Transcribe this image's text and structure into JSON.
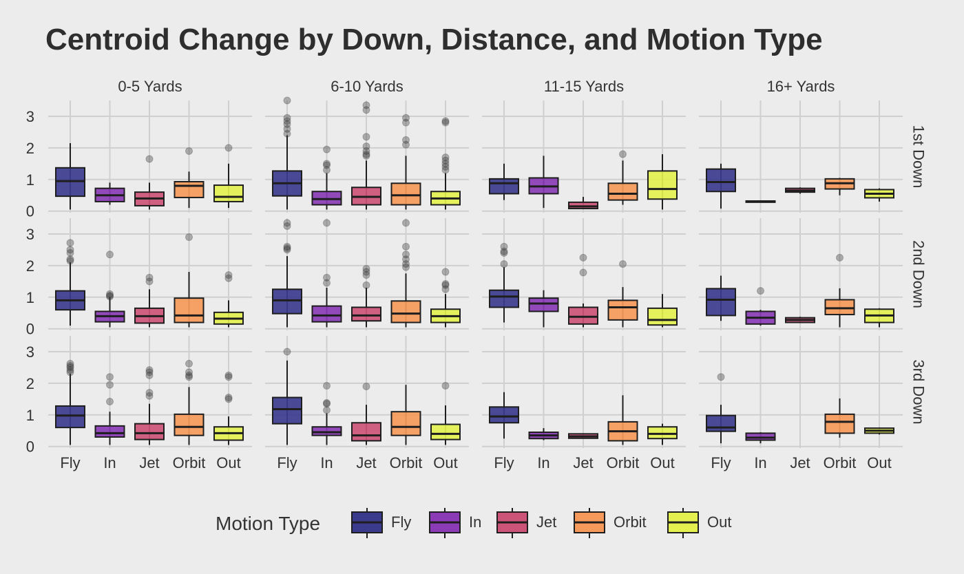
{
  "chart_data": {
    "type": "boxplot",
    "title": "Centroid Change by Down, Distance, and Motion Type",
    "categories": [
      "Fly",
      "In",
      "Jet",
      "Orbit",
      "Out"
    ],
    "facet_columns": [
      "0-5 Yards",
      "6-10 Yards",
      "11-15 Yards",
      "16+ Yards"
    ],
    "facet_rows": [
      "1st Down",
      "2nd Down",
      "3rd Down"
    ],
    "y_ticks": [
      0,
      1,
      2,
      3
    ],
    "ylim": [
      -0.05,
      3.5
    ],
    "legend": {
      "title": "Motion Type",
      "position": "bottom"
    },
    "colors": {
      "Fly": "#3b3b8e",
      "In": "#8a3bb5",
      "Jet": "#cc5478",
      "Orbit": "#f59a5a",
      "Out": "#e4f050"
    },
    "panels": [
      {
        "row": "1st Down",
        "col": "0-5 Yards",
        "boxes": [
          {
            "category": "Fly",
            "whisker_low": 0.05,
            "q1": 0.47,
            "median": 0.95,
            "q3": 1.37,
            "whisker_high": 2.15,
            "outliers": []
          },
          {
            "category": "In",
            "whisker_low": 0.2,
            "q1": 0.3,
            "median": 0.5,
            "q3": 0.72,
            "whisker_high": 0.9,
            "outliers": []
          },
          {
            "category": "Jet",
            "whisker_low": 0.05,
            "q1": 0.17,
            "median": 0.4,
            "q3": 0.6,
            "whisker_high": 0.9,
            "outliers": [
              1.65
            ]
          },
          {
            "category": "Orbit",
            "whisker_low": 0.1,
            "q1": 0.43,
            "median": 0.8,
            "q3": 0.93,
            "whisker_high": 1.25,
            "outliers": [
              1.9
            ]
          },
          {
            "category": "Out",
            "whisker_low": 0.1,
            "q1": 0.3,
            "median": 0.45,
            "q3": 0.82,
            "whisker_high": 1.5,
            "outliers": [
              2.0
            ]
          }
        ]
      },
      {
        "row": "1st Down",
        "col": "6-10 Yards",
        "boxes": [
          {
            "category": "Fly",
            "whisker_low": 0.05,
            "q1": 0.48,
            "median": 0.88,
            "q3": 1.27,
            "whisker_high": 2.4,
            "outliers": [
              2.45,
              2.6,
              2.75,
              2.85,
              2.95,
              3.5
            ]
          },
          {
            "category": "In",
            "whisker_low": 0.05,
            "q1": 0.2,
            "median": 0.38,
            "q3": 0.62,
            "whisker_high": 1.2,
            "outliers": [
              1.3,
              1.45,
              1.5,
              1.95
            ]
          },
          {
            "category": "Jet",
            "whisker_low": 0.05,
            "q1": 0.2,
            "median": 0.45,
            "q3": 0.75,
            "whisker_high": 1.6,
            "outliers": [
              1.75,
              1.8,
              1.9,
              2.05,
              2.35,
              3.2,
              3.35
            ]
          },
          {
            "category": "Orbit",
            "whisker_low": 0.05,
            "q1": 0.2,
            "median": 0.5,
            "q3": 0.88,
            "whisker_high": 1.75,
            "outliers": [
              2.1,
              2.25,
              2.8,
              2.95
            ]
          },
          {
            "category": "Out",
            "whisker_low": 0.05,
            "q1": 0.2,
            "median": 0.4,
            "q3": 0.62,
            "whisker_high": 1.2,
            "outliers": [
              1.3,
              1.4,
              1.5,
              1.6,
              1.7,
              2.8,
              2.85
            ]
          }
        ]
      },
      {
        "row": "1st Down",
        "col": "11-15 Yards",
        "boxes": [
          {
            "category": "Fly",
            "whisker_low": 0.35,
            "q1": 0.55,
            "median": 0.88,
            "q3": 1.02,
            "whisker_high": 1.5,
            "outliers": []
          },
          {
            "category": "In",
            "whisker_low": 0.1,
            "q1": 0.55,
            "median": 0.78,
            "q3": 1.05,
            "whisker_high": 1.75,
            "outliers": []
          },
          {
            "category": "Jet",
            "whisker_low": 0.08,
            "q1": 0.08,
            "median": 0.15,
            "q3": 0.28,
            "whisker_high": 0.45,
            "outliers": []
          },
          {
            "category": "Orbit",
            "whisker_low": 0.2,
            "q1": 0.35,
            "median": 0.55,
            "q3": 0.88,
            "whisker_high": 1.6,
            "outliers": [
              1.8
            ]
          },
          {
            "category": "Out",
            "whisker_low": 0.05,
            "q1": 0.38,
            "median": 0.7,
            "q3": 1.27,
            "whisker_high": 1.8,
            "outliers": []
          }
        ]
      },
      {
        "row": "1st Down",
        "col": "16+ Yards",
        "boxes": [
          {
            "category": "Fly",
            "whisker_low": 0.08,
            "q1": 0.62,
            "median": 0.92,
            "q3": 1.33,
            "whisker_high": 1.5,
            "outliers": []
          },
          {
            "category": "In",
            "whisker_low": 0.28,
            "q1": 0.28,
            "median": 0.3,
            "q3": 0.32,
            "whisker_high": 0.32,
            "outliers": []
          },
          {
            "category": "Jet",
            "whisker_low": 0.55,
            "q1": 0.6,
            "median": 0.65,
            "q3": 0.72,
            "whisker_high": 0.75,
            "outliers": []
          },
          {
            "category": "Orbit",
            "whisker_low": 0.5,
            "q1": 0.7,
            "median": 0.88,
            "q3": 1.02,
            "whisker_high": 1.05,
            "outliers": []
          },
          {
            "category": "Out",
            "whisker_low": 0.3,
            "q1": 0.42,
            "median": 0.55,
            "q3": 0.68,
            "whisker_high": 0.72,
            "outliers": []
          }
        ]
      },
      {
        "row": "2nd Down",
        "col": "0-5 Yards",
        "boxes": [
          {
            "category": "Fly",
            "whisker_low": 0.1,
            "q1": 0.6,
            "median": 0.9,
            "q3": 1.2,
            "whisker_high": 2.1,
            "outliers": [
              2.15,
              2.2,
              2.4,
              2.5,
              2.72
            ]
          },
          {
            "category": "In",
            "whisker_low": 0.05,
            "q1": 0.22,
            "median": 0.4,
            "q3": 0.55,
            "whisker_high": 1.0,
            "outliers": [
              1.02,
              1.05,
              1.1,
              2.35
            ]
          },
          {
            "category": "Jet",
            "whisker_low": 0.05,
            "q1": 0.18,
            "median": 0.4,
            "q3": 0.65,
            "whisker_high": 1.25,
            "outliers": [
              1.5,
              1.62
            ]
          },
          {
            "category": "Orbit",
            "whisker_low": 0.05,
            "q1": 0.2,
            "median": 0.42,
            "q3": 0.97,
            "whisker_high": 1.8,
            "outliers": [
              2.9
            ]
          },
          {
            "category": "Out",
            "whisker_low": 0.05,
            "q1": 0.15,
            "median": 0.32,
            "q3": 0.52,
            "whisker_high": 0.9,
            "outliers": [
              1.6,
              1.7
            ]
          }
        ]
      },
      {
        "row": "2nd Down",
        "col": "6-10 Yards",
        "boxes": [
          {
            "category": "Fly",
            "whisker_low": 0.05,
            "q1": 0.48,
            "median": 0.9,
            "q3": 1.25,
            "whisker_high": 2.3,
            "outliers": [
              2.5,
              2.55,
              2.6,
              3.25,
              3.35
            ]
          },
          {
            "category": "In",
            "whisker_low": 0.05,
            "q1": 0.22,
            "median": 0.42,
            "q3": 0.72,
            "whisker_high": 1.3,
            "outliers": [
              1.45,
              1.62,
              3.35
            ]
          },
          {
            "category": "Jet",
            "whisker_low": 0.05,
            "q1": 0.25,
            "median": 0.42,
            "q3": 0.68,
            "whisker_high": 1.3,
            "outliers": [
              1.38,
              1.7,
              1.8,
              1.9
            ]
          },
          {
            "category": "Orbit",
            "whisker_low": 0.05,
            "q1": 0.2,
            "median": 0.48,
            "q3": 0.88,
            "whisker_high": 1.75,
            "outliers": [
              1.95,
              2.05,
              2.2,
              2.35,
              2.6,
              3.35
            ]
          },
          {
            "category": "Out",
            "whisker_low": 0.05,
            "q1": 0.2,
            "median": 0.4,
            "q3": 0.62,
            "whisker_high": 1.1,
            "outliers": [
              1.25,
              1.38,
              1.42,
              1.8
            ]
          }
        ]
      },
      {
        "row": "2nd Down",
        "col": "11-15 Yards",
        "boxes": [
          {
            "category": "Fly",
            "whisker_low": 0.2,
            "q1": 0.68,
            "median": 1.02,
            "q3": 1.22,
            "whisker_high": 1.95,
            "outliers": [
              2.05,
              2.4,
              2.45,
              2.6
            ]
          },
          {
            "category": "In",
            "whisker_low": 0.05,
            "q1": 0.55,
            "median": 0.8,
            "q3": 0.97,
            "whisker_high": 1.22,
            "outliers": []
          },
          {
            "category": "Jet",
            "whisker_low": 0.05,
            "q1": 0.15,
            "median": 0.38,
            "q3": 0.68,
            "whisker_high": 0.8,
            "outliers": [
              1.78,
              2.25
            ]
          },
          {
            "category": "Orbit",
            "whisker_low": 0.05,
            "q1": 0.28,
            "median": 0.68,
            "q3": 0.9,
            "whisker_high": 1.32,
            "outliers": [
              2.05
            ]
          },
          {
            "category": "Out",
            "whisker_low": 0.05,
            "q1": 0.12,
            "median": 0.28,
            "q3": 0.65,
            "whisker_high": 1.1,
            "outliers": []
          }
        ]
      },
      {
        "row": "2nd Down",
        "col": "16+ Yards",
        "boxes": [
          {
            "category": "Fly",
            "whisker_low": 0.25,
            "q1": 0.42,
            "median": 0.92,
            "q3": 1.27,
            "whisker_high": 1.68,
            "outliers": []
          },
          {
            "category": "In",
            "whisker_low": 0.1,
            "q1": 0.15,
            "median": 0.35,
            "q3": 0.55,
            "whisker_high": 0.6,
            "outliers": [
              1.2
            ]
          },
          {
            "category": "Jet",
            "whisker_low": 0.18,
            "q1": 0.2,
            "median": 0.28,
            "q3": 0.35,
            "whisker_high": 0.38,
            "outliers": []
          },
          {
            "category": "Orbit",
            "whisker_low": 0.05,
            "q1": 0.45,
            "median": 0.65,
            "q3": 0.92,
            "whisker_high": 1.28,
            "outliers": [
              2.25
            ]
          },
          {
            "category": "Out",
            "whisker_low": 0.05,
            "q1": 0.2,
            "median": 0.42,
            "q3": 0.62,
            "whisker_high": 0.65,
            "outliers": []
          }
        ]
      },
      {
        "row": "3rd Down",
        "col": "0-5 Yards",
        "boxes": [
          {
            "category": "Fly",
            "whisker_low": 0.05,
            "q1": 0.6,
            "median": 0.98,
            "q3": 1.28,
            "whisker_high": 2.3,
            "outliers": [
              2.35,
              2.42,
              2.5,
              2.55,
              2.62
            ]
          },
          {
            "category": "In",
            "whisker_low": 0.05,
            "q1": 0.3,
            "median": 0.42,
            "q3": 0.65,
            "whisker_high": 1.1,
            "outliers": [
              1.42,
              1.95,
              2.2
            ]
          },
          {
            "category": "Jet",
            "whisker_low": 0.05,
            "q1": 0.22,
            "median": 0.42,
            "q3": 0.72,
            "whisker_high": 1.35,
            "outliers": [
              1.6,
              1.7,
              2.25,
              2.35,
              2.42
            ]
          },
          {
            "category": "Orbit",
            "whisker_low": 0.05,
            "q1": 0.35,
            "median": 0.62,
            "q3": 1.02,
            "whisker_high": 1.88,
            "outliers": [
              2.2,
              2.25,
              2.35,
              2.62
            ]
          },
          {
            "category": "Out",
            "whisker_low": 0.05,
            "q1": 0.2,
            "median": 0.42,
            "q3": 0.62,
            "whisker_high": 0.95,
            "outliers": [
              1.5,
              1.55,
              2.2,
              2.25
            ]
          }
        ]
      },
      {
        "row": "3rd Down",
        "col": "6-10 Yards",
        "boxes": [
          {
            "category": "Fly",
            "whisker_low": 0.05,
            "q1": 0.72,
            "median": 1.18,
            "q3": 1.55,
            "whisker_high": 2.72,
            "outliers": [
              3.0
            ]
          },
          {
            "category": "In",
            "whisker_low": 0.05,
            "q1": 0.35,
            "median": 0.45,
            "q3": 0.62,
            "whisker_high": 1.05,
            "outliers": [
              1.15,
              1.35,
              1.38,
              1.92
            ]
          },
          {
            "category": "Jet",
            "whisker_low": 0.05,
            "q1": 0.18,
            "median": 0.35,
            "q3": 0.75,
            "whisker_high": 1.32,
            "outliers": [
              1.9
            ]
          },
          {
            "category": "Orbit",
            "whisker_low": 0.05,
            "q1": 0.35,
            "median": 0.62,
            "q3": 1.1,
            "whisker_high": 1.95,
            "outliers": []
          },
          {
            "category": "Out",
            "whisker_low": 0.05,
            "q1": 0.22,
            "median": 0.4,
            "q3": 0.7,
            "whisker_high": 1.3,
            "outliers": [
              1.92
            ]
          }
        ]
      },
      {
        "row": "3rd Down",
        "col": "11-15 Yards",
        "boxes": [
          {
            "category": "Fly",
            "whisker_low": 0.25,
            "q1": 0.75,
            "median": 0.95,
            "q3": 1.25,
            "whisker_high": 1.72,
            "outliers": []
          },
          {
            "category": "In",
            "whisker_low": 0.2,
            "q1": 0.25,
            "median": 0.35,
            "q3": 0.45,
            "whisker_high": 0.58,
            "outliers": []
          },
          {
            "category": "Jet",
            "whisker_low": 0.25,
            "q1": 0.26,
            "median": 0.32,
            "q3": 0.4,
            "whisker_high": 0.4,
            "outliers": []
          },
          {
            "category": "Orbit",
            "whisker_low": 0.05,
            "q1": 0.18,
            "median": 0.48,
            "q3": 0.78,
            "whisker_high": 1.62,
            "outliers": []
          },
          {
            "category": "Out",
            "whisker_low": 0.05,
            "q1": 0.25,
            "median": 0.4,
            "q3": 0.62,
            "whisker_high": 0.72,
            "outliers": []
          }
        ]
      },
      {
        "row": "3rd Down",
        "col": "16+ Yards",
        "boxes": [
          {
            "category": "Fly",
            "whisker_low": 0.1,
            "q1": 0.48,
            "median": 0.6,
            "q3": 0.98,
            "whisker_high": 1.32,
            "outliers": [
              2.2
            ]
          },
          {
            "category": "In",
            "whisker_low": 0.1,
            "q1": 0.2,
            "median": 0.28,
            "q3": 0.42,
            "whisker_high": 0.45,
            "outliers": []
          },
          {
            "category": "Orbit",
            "whisker_low": 0.28,
            "q1": 0.42,
            "median": 0.78,
            "q3": 1.02,
            "whisker_high": 1.52,
            "outliers": []
          },
          {
            "category": "Out",
            "whisker_low": 0.38,
            "q1": 0.42,
            "median": 0.5,
            "q3": 0.58,
            "whisker_high": 0.6,
            "outliers": []
          }
        ]
      }
    ]
  }
}
